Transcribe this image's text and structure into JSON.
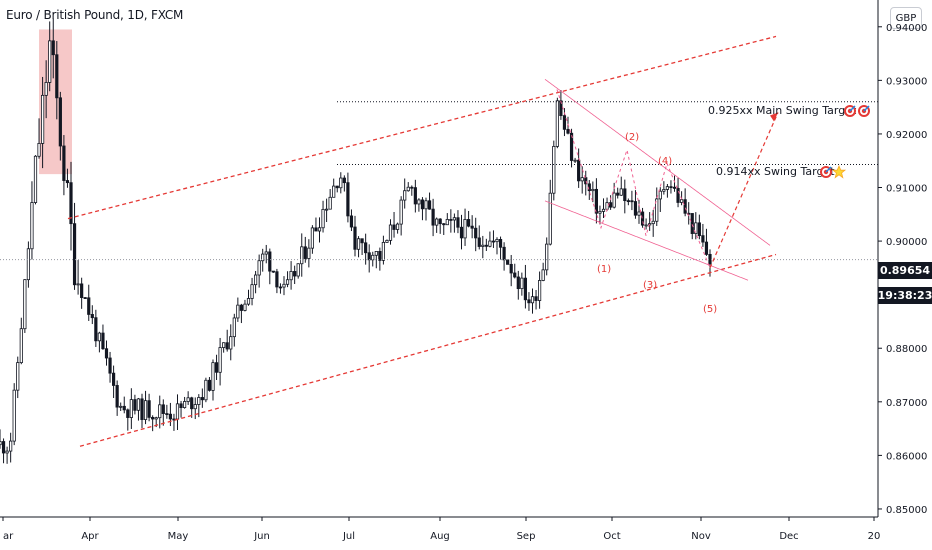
{
  "header": {
    "title": "Euro / British Pound, 1D, FXCM",
    "currency": "GBP"
  },
  "price_scale": {
    "current_price": "0.89654",
    "countdown": "19:38:23"
  },
  "colors": {
    "bull": "#131722",
    "bear": "#131722",
    "channel": "#e53935",
    "wedge": "#f06292",
    "highlight": "#ef9a9a",
    "level": "#131722",
    "wave_label": "#e53935",
    "axis_text": "#131722"
  },
  "annotations": {
    "target_main": "0.925xx Main Swing Target 2",
    "target_swing": "0.914xx Swing Target",
    "wave_1": "(1)",
    "wave_2": "(2)",
    "wave_3": "(3)",
    "wave_4": "(4)",
    "wave_5": "(5)"
  },
  "icons": {
    "target_main": [
      "target-icon",
      "target-icon"
    ],
    "target_swing": [
      "target-icon",
      "star-icon"
    ]
  },
  "chart_data": {
    "type": "candlestick",
    "symbol": "EURGBP",
    "timeframe": "1D",
    "ylim": [
      0.8485,
      0.945
    ],
    "y_ticks": [
      "0.94000",
      "0.93000",
      "0.92000",
      "0.91000",
      "0.90000",
      "0.89000",
      "0.88000",
      "0.87000",
      "0.86000",
      "0.85000"
    ],
    "x_ticks": [
      "ar",
      "Apr",
      "May",
      "Jun",
      "Jul",
      "Aug",
      "Sep",
      "Oct",
      "Nov",
      "Dec",
      "20"
    ],
    "key_points": [
      {
        "date": "Mar",
        "price": 0.862
      },
      {
        "date": "Mar",
        "price": 0.914
      },
      {
        "date": "Mar",
        "price": 0.937
      },
      {
        "date": "Apr",
        "price": 0.895
      },
      {
        "date": "Apr",
        "price": 0.869
      },
      {
        "date": "May",
        "price": 0.868
      },
      {
        "date": "May",
        "price": 0.872
      },
      {
        "date": "Jun",
        "price": 0.898
      },
      {
        "date": "Jun",
        "price": 0.89
      },
      {
        "date": "Jul",
        "price": 0.913
      },
      {
        "date": "Jul",
        "price": 0.9
      },
      {
        "date": "Jul",
        "price": 0.897
      },
      {
        "date": "Aug",
        "price": 0.91
      },
      {
        "date": "Aug",
        "price": 0.902
      },
      {
        "date": "Aug",
        "price": 0.903
      },
      {
        "date": "Aug",
        "price": 0.899
      },
      {
        "date": "Sep",
        "price": 0.888
      },
      {
        "date": "Sep",
        "price": 0.897
      },
      {
        "date": "Sep",
        "price": 0.926
      },
      {
        "date": "Sep",
        "price": 0.914
      },
      {
        "date": "Oct",
        "price": 0.905
      },
      {
        "date": "Oct",
        "price": 0.909
      },
      {
        "date": "Oct",
        "price": 0.903
      },
      {
        "date": "Oct",
        "price": 0.912
      },
      {
        "date": "Nov",
        "price": 0.902
      },
      {
        "date": "Nov",
        "price": 0.8965
      }
    ],
    "levels": [
      {
        "label": "0.925xx Main Swing Target 2",
        "price": 0.926
      },
      {
        "label": "0.914xx Swing Target",
        "price": 0.9143
      }
    ],
    "current_price": 0.89654
  }
}
